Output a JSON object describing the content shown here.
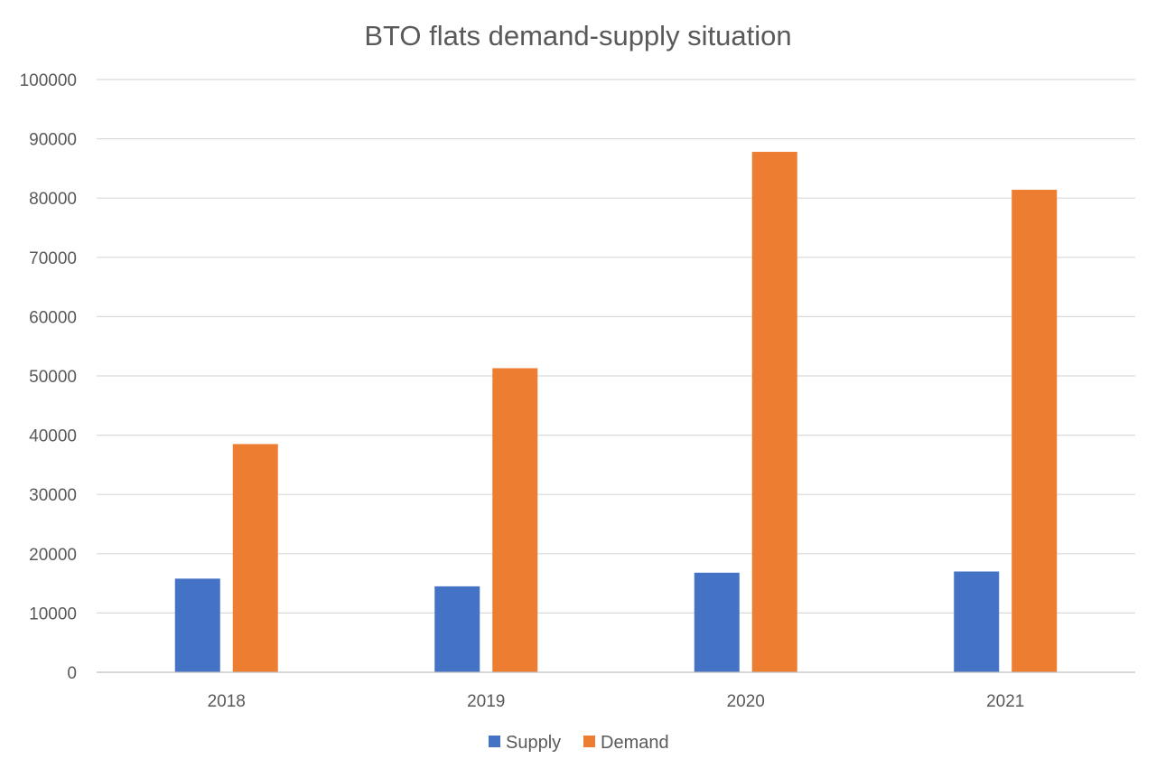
{
  "chart_data": {
    "type": "bar",
    "title": "BTO flats demand-supply situation",
    "xlabel": "",
    "ylabel": "",
    "categories": [
      "2018",
      "2019",
      "2020",
      "2021"
    ],
    "series": [
      {
        "name": "Supply",
        "color": "#4472C4",
        "values": [
          15800,
          14500,
          16800,
          17000
        ]
      },
      {
        "name": "Demand",
        "color": "#ED7D31",
        "values": [
          38500,
          51300,
          87800,
          81400
        ]
      }
    ],
    "ylim": [
      0,
      100000
    ],
    "yticks": [
      "0",
      "10000",
      "20000",
      "30000",
      "40000",
      "50000",
      "60000",
      "70000",
      "80000",
      "90000",
      "100000"
    ],
    "grid": true,
    "legend_position": "bottom-center"
  },
  "colors": {
    "text": "#595959",
    "title": "#595959",
    "grid": "#D9D9D9",
    "axis": "#BFBFBF"
  }
}
